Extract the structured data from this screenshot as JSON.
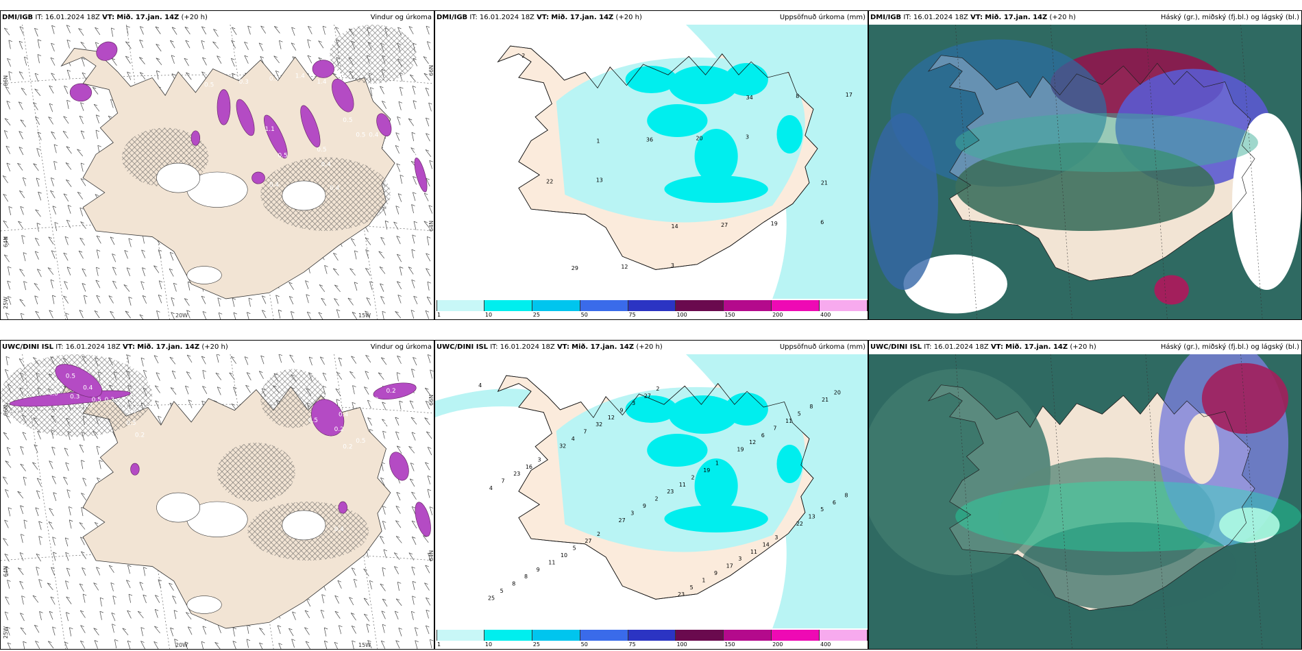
{
  "panels": [
    {
      "source": "DMI/IGB",
      "it_label": "IT:",
      "it": "16.01.2024 18Z",
      "vt_label": "VT:",
      "vt": "Mið. 17.jan. 14Z",
      "lead": "(+20 h)",
      "title": "Vindur og úrkoma"
    },
    {
      "source": "DMI/IGB",
      "it_label": "IT:",
      "it": "16.01.2024 18Z",
      "vt_label": "VT:",
      "vt": "Mið. 17.jan. 14Z",
      "lead": "(+20 h)",
      "title": "Uppsöfnuð úrkoma (mm)"
    },
    {
      "source": "DMI/IGB",
      "it_label": "IT:",
      "it": "16.01.2024 18Z",
      "vt_label": "VT:",
      "vt": "Mið. 17.jan. 14Z",
      "lead": "(+20 h)",
      "title": "Háský (gr.), miðský (fj.bl.) og lágský (bl.)"
    },
    {
      "source": "UWC/DINI ISL",
      "it_label": "IT:",
      "it": "16.01.2024 18Z",
      "vt_label": "VT:",
      "vt": "Mið. 17.jan. 14Z",
      "lead": "(+20 h)",
      "title": "Vindur og úrkoma"
    },
    {
      "source": "UWC/DINI ISL",
      "it_label": "IT:",
      "it": "16.01.2024 18Z",
      "vt_label": "VT:",
      "vt": "Mið. 17.jan. 14Z",
      "lead": "(+20 h)",
      "title": "Uppsöfnuð úrkoma (mm)"
    },
    {
      "source": "UWC/DINI ISL",
      "it_label": "IT:",
      "it": "16.01.2024 18Z",
      "vt_label": "VT:",
      "vt": "Mið. 17.jan. 14Z",
      "lead": "(+20 h)",
      "title": "Háský (gr.), miðský (fj.bl.) og lágský (bl.)"
    }
  ],
  "axis_labels": {
    "lat66": "66N",
    "lat64": "64N",
    "lon25": "25W",
    "lon20": "20W",
    "lon15": "15W"
  },
  "colorbar": {
    "ticks": [
      "1",
      "10",
      "25",
      "50",
      "75",
      "100",
      "150",
      "200",
      "400"
    ],
    "colors": [
      "#c8f7f7",
      "#00eeee",
      "#00c5ee",
      "#3a6bea",
      "#2b34c3",
      "#6a0a4e",
      "#b40a8c",
      "#ee0ab4",
      "#f7aaee"
    ]
  },
  "precip_top": [
    "2",
    "1",
    "14",
    "34",
    "21",
    "29",
    "36",
    "27",
    "8",
    "22",
    "12",
    "20",
    "19",
    "17",
    "13",
    "3",
    "3",
    "6"
  ],
  "precip_bottom": [
    "4",
    "3",
    "2",
    "2",
    "1",
    "3",
    "20",
    "16",
    "27",
    "27",
    "19",
    "14",
    "21",
    "23",
    "5",
    "3",
    "2",
    "11",
    "8",
    "7",
    "10",
    "9",
    "11",
    "3",
    "5",
    "4",
    "11",
    "12",
    "23",
    "17",
    "11",
    "8",
    "9",
    "32",
    "2",
    "9",
    "7",
    "6",
    "8",
    "7",
    "9",
    "1",
    "6",
    "5",
    "8",
    "4",
    "3",
    "5",
    "12",
    "13",
    "5",
    "32",
    "27",
    "23",
    "19",
    "22",
    "25"
  ],
  "wind_precip_top": [
    "0.2",
    "1.4",
    "0.5",
    "0.3",
    "0.3",
    "1.1",
    "0.5",
    "1.4",
    "0.5",
    "0.5",
    "0.3",
    "0.4",
    "0.5",
    "0.4",
    "0.2",
    "0.4",
    "0.4"
  ],
  "wind_precip_bottom": [
    "0.3",
    "0.3",
    "0.5",
    "0.4",
    "0.3",
    "0.3",
    "4.0",
    "0.5",
    "0.3",
    "0.4",
    "0.5",
    "0.2",
    "0.2",
    "0.4",
    "0.4",
    "0.3",
    "0.5",
    "0.2",
    "0.5",
    "0.2",
    "0.2",
    "0.5",
    "0.4"
  ]
}
